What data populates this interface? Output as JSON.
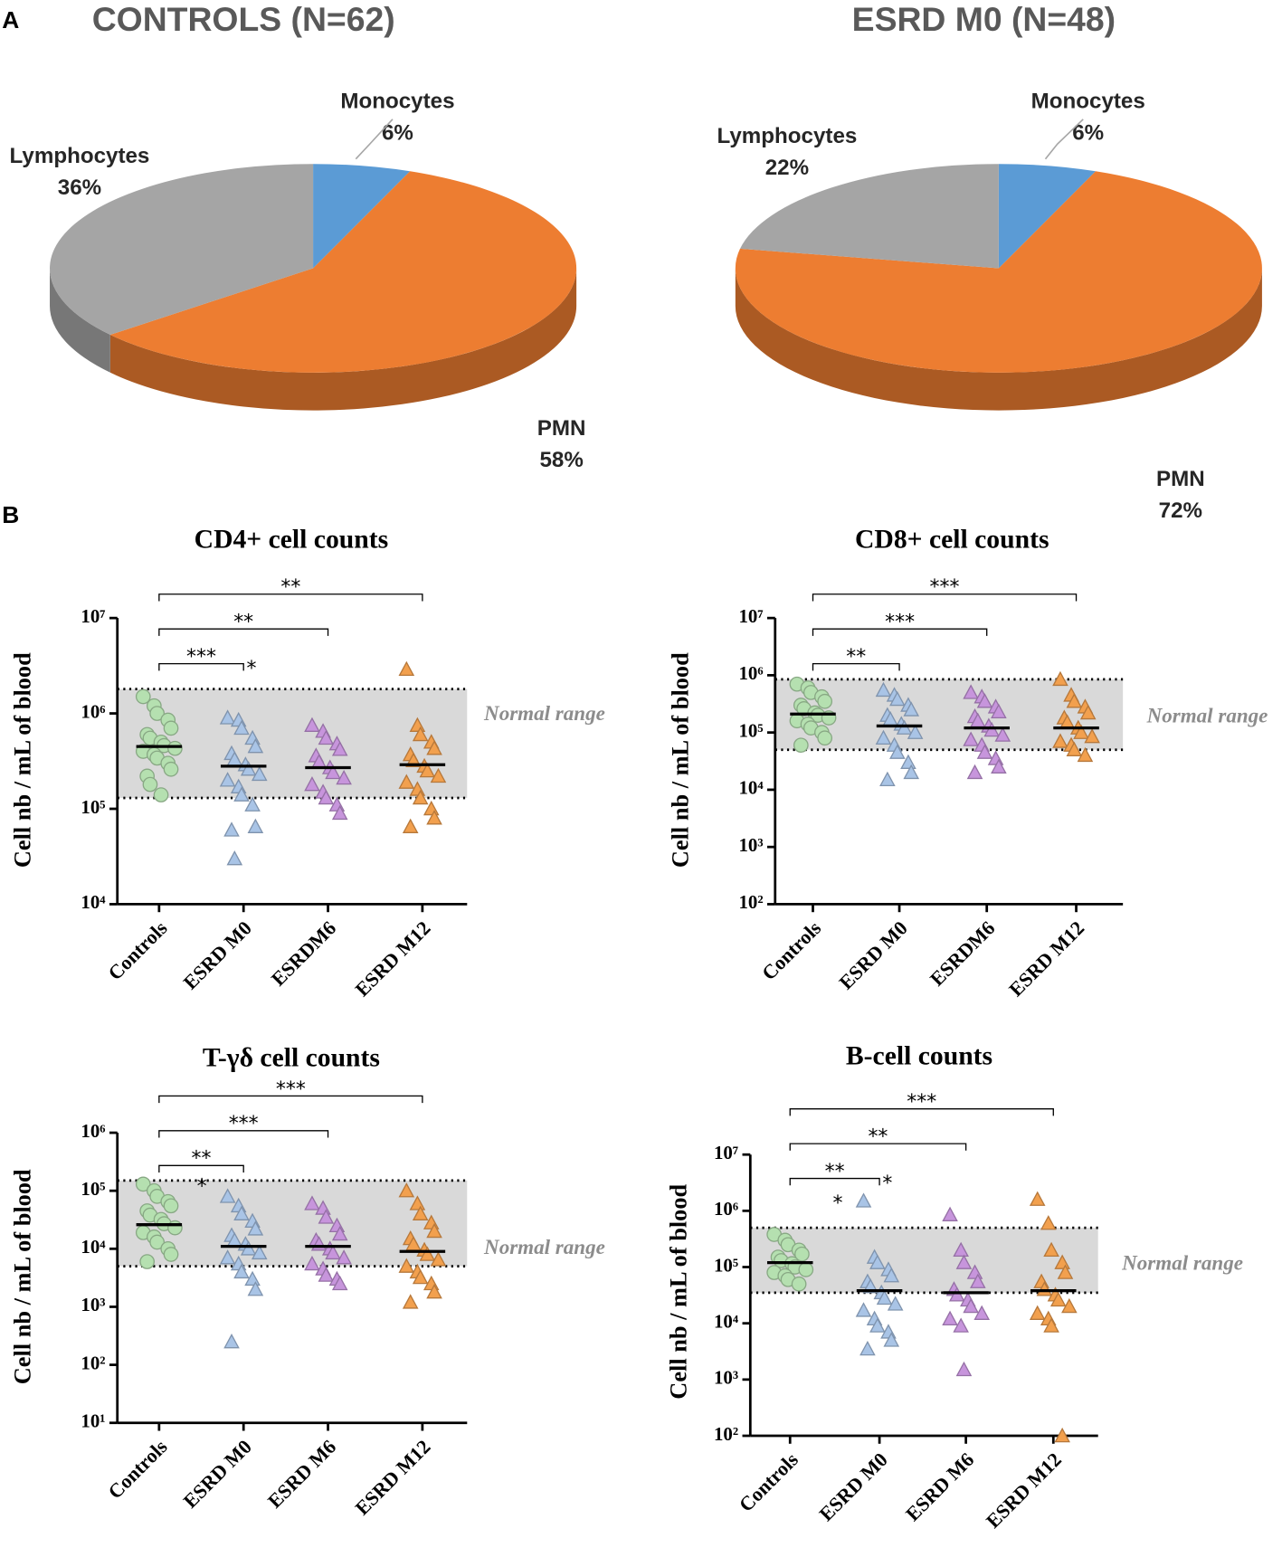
{
  "panels": [
    "A",
    "B"
  ],
  "chart_data": [
    {
      "type": "pie",
      "title": "CONTROLS (N=62)",
      "labels": [
        "Monocytes",
        "PMN",
        "Lymphocytes"
      ],
      "values": [
        6,
        58,
        36
      ],
      "value_labels": [
        "6%",
        "58%",
        "36%"
      ],
      "colors": [
        "#5b9bd5",
        "#ed7d31",
        "#a5a5a5"
      ]
    },
    {
      "type": "pie",
      "title": "ESRD M0 (N=48)",
      "labels": [
        "Monocytes",
        "PMN",
        "Lymphocytes"
      ],
      "values": [
        6,
        72,
        22
      ],
      "value_labels": [
        "6%",
        "72%",
        "22%"
      ],
      "colors": [
        "#5b9bd5",
        "#ed7d31",
        "#a5a5a5"
      ]
    },
    {
      "type": "dotplot",
      "title": "CD4+ cell counts",
      "ylabel": "Cell nb / mL of blood",
      "log": true,
      "categories": [
        "Controls",
        "ESRD M0",
        "ESRDM6",
        "ESRD M12"
      ],
      "ylim": [
        10000,
        10000000
      ],
      "yticks": [
        {
          "value": 10000,
          "label": "10⁴"
        },
        {
          "value": 100000,
          "label": "10⁵"
        },
        {
          "value": 1000000,
          "label": "10⁶"
        },
        {
          "value": 10000000,
          "label": "10⁷"
        }
      ],
      "normal_range": {
        "label": "Normal range",
        "low": 130000,
        "high": 1800000
      },
      "groups": [
        {
          "marker": "circle",
          "color": "#b5e0b0",
          "values": [
            1500000,
            1200000,
            1000000,
            850000,
            700000,
            600000,
            550000,
            500000,
            460000,
            430000,
            400000,
            370000,
            340000,
            300000,
            260000,
            220000,
            180000,
            140000
          ],
          "median": 450000
        },
        {
          "marker": "triangle",
          "color": "#a9c4e6",
          "values": [
            900000,
            850000,
            700000,
            550000,
            450000,
            380000,
            330000,
            290000,
            260000,
            230000,
            200000,
            170000,
            140000,
            110000,
            65000,
            60000,
            30000
          ],
          "median": 280000
        },
        {
          "marker": "triangle",
          "color": "#c795dc",
          "values": [
            750000,
            650000,
            550000,
            480000,
            420000,
            360000,
            310000,
            270000,
            240000,
            210000,
            180000,
            150000,
            130000,
            110000,
            90000
          ],
          "median": 270000
        },
        {
          "marker": "triangle",
          "color": "#f2a04e",
          "values": [
            2900000,
            750000,
            600000,
            500000,
            430000,
            370000,
            320000,
            280000,
            250000,
            220000,
            190000,
            160000,
            130000,
            100000,
            80000,
            65000
          ],
          "median": 290000
        }
      ],
      "comparisons": [
        {
          "groups": [
            0,
            3
          ],
          "label": "**"
        },
        {
          "groups": [
            0,
            2
          ],
          "label": "**"
        },
        {
          "groups": [
            0,
            1
          ],
          "label": "***",
          "note": "*"
        }
      ]
    },
    {
      "type": "dotplot",
      "title": "CD8+ cell counts",
      "ylabel": "Cell nb / mL of blood",
      "log": true,
      "categories": [
        "Controls",
        "ESRD M0",
        "ESRDM6",
        "ESRD M12"
      ],
      "ylim": [
        100,
        10000000
      ],
      "yticks": [
        {
          "value": 100,
          "label": "10²"
        },
        {
          "value": 1000,
          "label": "10³"
        },
        {
          "value": 10000,
          "label": "10⁴"
        },
        {
          "value": 100000,
          "label": "10⁵"
        },
        {
          "value": 1000000,
          "label": "10⁶"
        },
        {
          "value": 10000000,
          "label": "10⁷"
        }
      ],
      "normal_range": {
        "label": "Normal range",
        "low": 50000,
        "high": 850000
      },
      "groups": [
        {
          "marker": "circle",
          "color": "#b5e0b0",
          "values": [
            700000,
            600000,
            500000,
            420000,
            350000,
            300000,
            260000,
            220000,
            200000,
            180000,
            160000,
            140000,
            120000,
            100000,
            80000,
            60000
          ],
          "median": 210000
        },
        {
          "marker": "triangle",
          "color": "#a9c4e6",
          "values": [
            550000,
            450000,
            380000,
            300000,
            250000,
            200000,
            170000,
            140000,
            120000,
            100000,
            80000,
            60000,
            45000,
            30000,
            20000,
            15000
          ],
          "median": 130000
        },
        {
          "marker": "triangle",
          "color": "#c795dc",
          "values": [
            500000,
            420000,
            350000,
            280000,
            230000,
            190000,
            160000,
            130000,
            110000,
            90000,
            75000,
            60000,
            45000,
            35000,
            25000,
            20000
          ],
          "median": 120000
        },
        {
          "marker": "triangle",
          "color": "#f2a04e",
          "values": [
            850000,
            450000,
            350000,
            280000,
            220000,
            180000,
            150000,
            120000,
            100000,
            85000,
            70000,
            60000,
            50000,
            40000
          ],
          "median": 120000
        }
      ],
      "comparisons": [
        {
          "groups": [
            0,
            3
          ],
          "label": "***"
        },
        {
          "groups": [
            0,
            2
          ],
          "label": "***"
        },
        {
          "groups": [
            0,
            1
          ],
          "label": "**"
        }
      ]
    },
    {
      "type": "dotplot",
      "title": "T-γδ cell counts",
      "ylabel": "Cell nb / mL of blood",
      "log": true,
      "categories": [
        "Controls",
        "ESRD M0",
        "ESRD M6",
        "ESRD M12"
      ],
      "ylim": [
        10,
        1000000
      ],
      "yticks": [
        {
          "value": 10,
          "label": "10¹"
        },
        {
          "value": 100,
          "label": "10²"
        },
        {
          "value": 1000,
          "label": "10³"
        },
        {
          "value": 10000,
          "label": "10⁴"
        },
        {
          "value": 100000,
          "label": "10⁵"
        },
        {
          "value": 1000000,
          "label": "10⁶"
        }
      ],
      "normal_range": {
        "label": "Normal range",
        "low": 5000,
        "high": 150000
      },
      "groups": [
        {
          "marker": "circle",
          "color": "#b5e0b0",
          "values": [
            130000,
            100000,
            80000,
            65000,
            55000,
            45000,
            38000,
            32000,
            27000,
            23000,
            19000,
            16000,
            13000,
            10000,
            8000,
            6000
          ],
          "median": 26000
        },
        {
          "marker": "triangle",
          "color": "#a9c4e6",
          "values": [
            80000,
            55000,
            40000,
            30000,
            22000,
            17000,
            14000,
            12000,
            10000,
            8500,
            7000,
            5500,
            4000,
            3000,
            2000,
            250
          ],
          "median": 11000
        },
        {
          "marker": "triangle",
          "color": "#c795dc",
          "values": [
            60000,
            50000,
            35000,
            25000,
            18000,
            14000,
            12000,
            10000,
            8500,
            7000,
            5500,
            4500,
            3500,
            3000,
            2500
          ],
          "median": 11000
        },
        {
          "marker": "triangle",
          "color": "#f2a04e",
          "values": [
            100000,
            60000,
            40000,
            28000,
            20000,
            15000,
            12000,
            9500,
            8000,
            6500,
            5000,
            4000,
            3200,
            2500,
            1800,
            1200
          ],
          "median": 9000
        }
      ],
      "comparisons": [
        {
          "groups": [
            0,
            3
          ],
          "label": "***"
        },
        {
          "groups": [
            0,
            2
          ],
          "label": "***"
        },
        {
          "groups": [
            0,
            1
          ],
          "label": "**"
        }
      ],
      "annotations": [
        "*"
      ]
    },
    {
      "type": "dotplot",
      "title": "B-cell counts",
      "ylabel": "Cell nb / mL of blood",
      "log": true,
      "categories": [
        "Controls",
        "ESRD M0",
        "ESRD M6",
        "ESRD M12"
      ],
      "ylim": [
        100,
        10000000
      ],
      "yticks": [
        {
          "value": 100,
          "label": "10²"
        },
        {
          "value": 1000,
          "label": "10³"
        },
        {
          "value": 10000,
          "label": "10⁴"
        },
        {
          "value": 100000,
          "label": "10⁵"
        },
        {
          "value": 1000000,
          "label": "10⁶"
        },
        {
          "value": 10000000,
          "label": "10⁷"
        }
      ],
      "normal_range": {
        "label": "Normal range",
        "low": 35000,
        "high": 500000
      },
      "groups": [
        {
          "marker": "circle",
          "color": "#b5e0b0",
          "values": [
            380000,
            300000,
            250000,
            200000,
            170000,
            150000,
            130000,
            115000,
            100000,
            90000,
            80000,
            70000,
            60000,
            50000
          ],
          "median": 120000
        },
        {
          "marker": "triangle",
          "color": "#a9c4e6",
          "values": [
            1500000,
            150000,
            120000,
            90000,
            70000,
            55000,
            45000,
            35000,
            28000,
            22000,
            17000,
            12000,
            9000,
            7000,
            5000,
            3500
          ],
          "median": 38000
        },
        {
          "marker": "triangle",
          "color": "#c795dc",
          "values": [
            850000,
            200000,
            120000,
            80000,
            55000,
            40000,
            32000,
            26000,
            20000,
            15000,
            12000,
            9000,
            1500
          ],
          "median": 35000
        },
        {
          "marker": "triangle",
          "color": "#f2a04e",
          "values": [
            1600000,
            600000,
            200000,
            120000,
            80000,
            55000,
            40000,
            32000,
            26000,
            20000,
            15000,
            12000,
            9000,
            100
          ],
          "median": 38000
        }
      ],
      "comparisons": [
        {
          "groups": [
            0,
            3
          ],
          "label": "***"
        },
        {
          "groups": [
            0,
            2
          ],
          "label": "**"
        },
        {
          "groups": [
            0,
            1
          ],
          "label": "**",
          "note": "*"
        }
      ],
      "annotations": [
        "*"
      ]
    }
  ]
}
